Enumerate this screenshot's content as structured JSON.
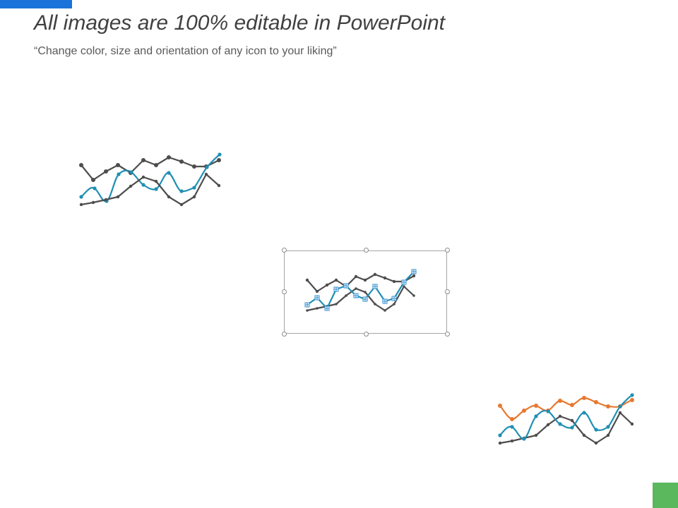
{
  "slide": {
    "title": "All images are 100% editable in PowerPoint",
    "subtitle": "“Change color, size and orientation of any icon to your liking”"
  },
  "colors": {
    "accent_blue": "#1a73d9",
    "accent_green": "#5cb85c",
    "dark_line": "#4d4d4d",
    "teal_line": "#1f8fb3",
    "orange_line": "#e8782e",
    "selection_blue": "#2f8ccf",
    "frame_gray": "#a6a6a6"
  },
  "icons": [
    {
      "name": "line-chart-icon-dark-teal",
      "state": "normal"
    },
    {
      "name": "line-chart-icon-selected",
      "state": "selected"
    },
    {
      "name": "line-chart-icon-orange-teal",
      "state": "normal"
    }
  ]
}
